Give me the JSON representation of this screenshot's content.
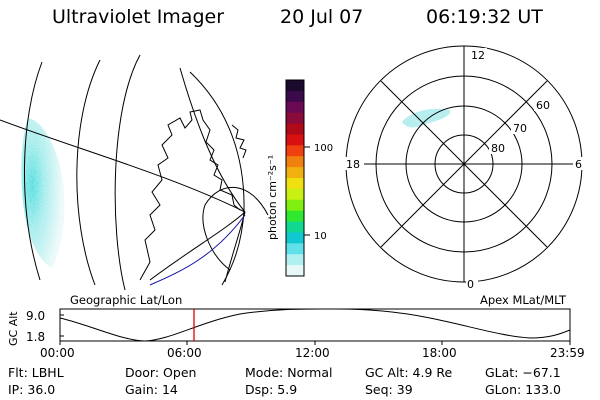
{
  "header": {
    "title": "Ultraviolet Imager",
    "date": "20 Jul 07",
    "time": "06:19:32 UT"
  },
  "colorbar": {
    "label": "photon cm⁻²s⁻¹",
    "ticks": [
      "100",
      "10"
    ],
    "colors": [
      "#1a0a2e",
      "#3a0a4a",
      "#6a0a55",
      "#8a0a3a",
      "#b00a1a",
      "#d81010",
      "#f04010",
      "#f08010",
      "#f0b010",
      "#f0e010",
      "#c8f010",
      "#80f010",
      "#30e830",
      "#10d890",
      "#10c8d0",
      "#60e0e8",
      "#b0f0f0",
      "#e8f8f8"
    ]
  },
  "polar_plot": {
    "mlt_labels": {
      "top": "12",
      "left": "18",
      "right": "6",
      "bottom": "0"
    },
    "lat_labels": [
      "60",
      "70",
      "80"
    ]
  },
  "altitude_plot": {
    "y_axis_label": "GC Alt",
    "y_ticks": [
      "9.0",
      "1.8"
    ],
    "left_title": "Geographic Lat/Lon",
    "right_title": "Apex MLat/MLT",
    "x_ticks": [
      "00:00",
      "06:00",
      "12:00",
      "18:00",
      "23:59"
    ],
    "marker_color": "#e00000"
  },
  "info": {
    "row1": [
      {
        "label": "Flt:",
        "value": "LBHL"
      },
      {
        "label": "Door:",
        "value": "Open"
      },
      {
        "label": "Mode:",
        "value": "Normal"
      },
      {
        "label": "GC Alt:",
        "value": "4.9 Re"
      },
      {
        "label": "GLat:",
        "value": "−67.1"
      }
    ],
    "row2": [
      {
        "label": "IP:",
        "value": "36.0"
      },
      {
        "label": "Gain:",
        "value": "14"
      },
      {
        "label": "Dsp:",
        "value": "5.9"
      },
      {
        "label": "Seq:",
        "value": "39"
      },
      {
        "label": "GLon:",
        "value": "133.0"
      }
    ]
  }
}
